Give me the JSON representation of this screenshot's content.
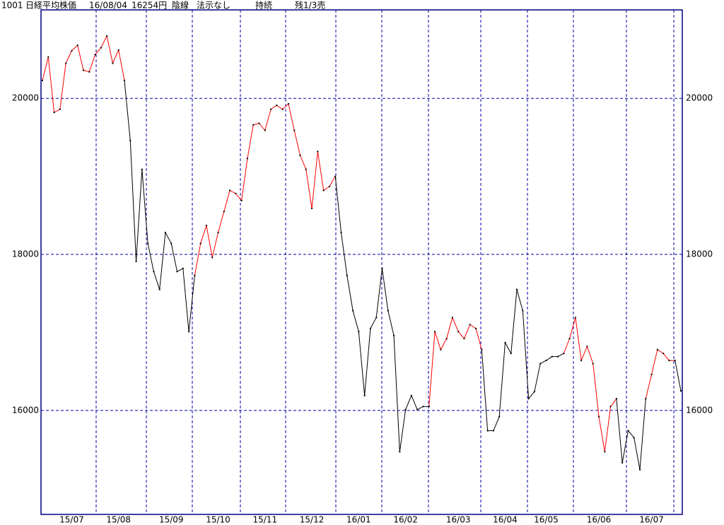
{
  "chart_data": {
    "type": "line",
    "header": {
      "code": "1001",
      "name": "日経平均株価",
      "date": "16/08/04",
      "price": "16254円",
      "candle": "陰線",
      "signal": "法示なし",
      "status": "持続",
      "remain": "残1/3売"
    },
    "categories": [
      null,
      null,
      null,
      null,
      null,
      "15/07",
      null,
      null,
      null,
      null,
      null,
      null,
      null,
      "15/08",
      null,
      null,
      null,
      null,
      null,
      null,
      null,
      null,
      "15/09",
      null,
      null,
      null,
      null,
      null,
      null,
      null,
      "15/10",
      null,
      null,
      null,
      null,
      null,
      null,
      null,
      "15/11",
      null,
      null,
      null,
      null,
      null,
      null,
      null,
      "15/12",
      null,
      null,
      null,
      null,
      null,
      null,
      null,
      "16/01",
      null,
      null,
      null,
      null,
      null,
      null,
      null,
      "16/02",
      null,
      null,
      null,
      null,
      null,
      null,
      null,
      null,
      "16/03",
      null,
      null,
      null,
      null,
      null,
      null,
      null,
      "16/04",
      null,
      null,
      null,
      null,
      null,
      null,
      "16/05",
      null,
      null,
      null,
      null,
      null,
      null,
      null,
      null,
      "16/06",
      null,
      null,
      null,
      null,
      null,
      null,
      null,
      null,
      "16/07",
      null,
      null,
      null,
      null,
      null
    ],
    "series": [
      {
        "values": [
          20230,
          20530,
          19820,
          19860,
          20450,
          20610,
          20680,
          20360,
          20340,
          20560,
          20650,
          20800,
          20450,
          20620,
          20230,
          19460,
          17910,
          19090,
          18140,
          17780,
          17550,
          18280,
          18140,
          17780,
          17820,
          17010,
          17730,
          18140,
          18370,
          17960,
          18280,
          18550,
          18820,
          18780,
          18690,
          19230,
          19660,
          19680,
          19590,
          19860,
          19910,
          19860,
          19930,
          19590,
          19270,
          19090,
          18590,
          19320,
          18820,
          18870,
          19000,
          18280,
          17730,
          17280,
          17010,
          16190,
          17050,
          17190,
          17820,
          17280,
          16960,
          15470,
          16010,
          16190,
          16010,
          16050,
          16050,
          17010,
          16780,
          16920,
          17190,
          17010,
          16920,
          17100,
          17050,
          16780,
          15740,
          15740,
          15920,
          16870,
          16730,
          17550,
          17280,
          16150,
          16240,
          16600,
          16640,
          16690,
          16690,
          16730,
          16920,
          17190,
          16640,
          16820,
          16600,
          15920,
          15470,
          16050,
          16150,
          15330,
          15740,
          15650,
          15240,
          16150,
          16460,
          16780,
          16730,
          16640,
          16640,
          16250
        ],
        "segment_colors": [
          "#000000",
          "#ff0000",
          "#ff0000",
          "#ff0000",
          "#ff0000",
          "#ff0000",
          "#ff0000",
          "#ff0000",
          "#ff0000",
          "#ff0000",
          "#ff0000",
          "#ff0000",
          "#ff0000",
          "#ff0000",
          "#ff0000",
          "#000000",
          "#000000",
          "#000000",
          "#000000",
          "#000000",
          "#000000",
          "#000000",
          "#000000",
          "#000000",
          "#000000",
          "#000000",
          "#000000",
          "#ff0000",
          "#ff0000",
          "#ff0000",
          "#ff0000",
          "#ff0000",
          "#ff0000",
          "#ff0000",
          "#ff0000",
          "#ff0000",
          "#ff0000",
          "#ff0000",
          "#ff0000",
          "#ff0000",
          "#ff0000",
          "#ff0000",
          "#ff0000",
          "#ff0000",
          "#ff0000",
          "#ff0000",
          "#ff0000",
          "#ff0000",
          "#ff0000",
          "#ff0000",
          "#ff0000",
          "#000000",
          "#000000",
          "#000000",
          "#000000",
          "#000000",
          "#000000",
          "#000000",
          "#000000",
          "#000000",
          "#000000",
          "#000000",
          "#000000",
          "#000000",
          "#000000",
          "#000000",
          "#000000",
          "#ff0000",
          "#ff0000",
          "#ff0000",
          "#ff0000",
          "#ff0000",
          "#ff0000",
          "#ff0000",
          "#ff0000",
          "#ff0000",
          "#000000",
          "#000000",
          "#000000",
          "#000000",
          "#000000",
          "#000000",
          "#000000",
          "#000000",
          "#000000",
          "#000000",
          "#000000",
          "#000000",
          "#000000",
          "#000000",
          "#ff0000",
          "#ff0000",
          "#ff0000",
          "#ff0000",
          "#ff0000",
          "#ff0000",
          "#ff0000",
          "#ff0000",
          "#ff0000",
          "#000000",
          "#000000",
          "#000000",
          "#000000",
          "#000000",
          "#ff0000",
          "#ff0000",
          "#ff0000",
          "#ff0000",
          "#ff0000",
          "#000000"
        ]
      }
    ],
    "ylim": [
      14667,
      21134
    ],
    "yticks": [
      16000,
      18000,
      20000
    ],
    "grid": true,
    "frame_color": "#000080",
    "grid_color": "#0000a0"
  }
}
